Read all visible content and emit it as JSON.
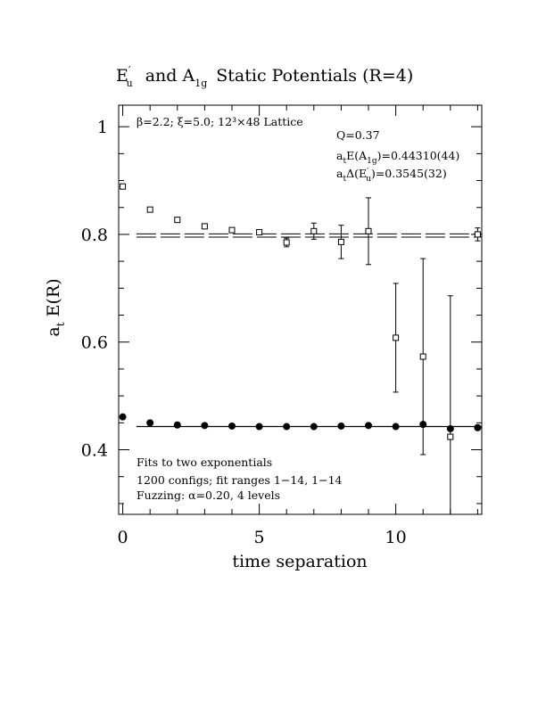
{
  "chart_data": {
    "type": "scatter",
    "title": {
      "e_main": "E",
      "e_prime": "′",
      "e_sub": "u",
      "and": "and A",
      "a_sub": "1g",
      "rest": "Static Potentials (R=4)"
    },
    "xlabel": "time separation",
    "ylabel": {
      "main": "a",
      "sub": "t",
      "rest": " E(R)"
    },
    "xlim": [
      -0.15,
      13.15
    ],
    "ylim": [
      0.28,
      1.04
    ],
    "x_ticks": [
      0,
      5,
      10
    ],
    "x_tick_labels": [
      "0",
      "5",
      "10"
    ],
    "y_ticks": [
      0.4,
      0.6,
      0.8,
      1.0
    ],
    "y_tick_labels": [
      "0.4",
      "0.6",
      "0.8",
      "1"
    ],
    "x_minor_step": 1,
    "y_minor_step": 0.05,
    "annotations": {
      "lattice": "β=2.2; ξ=5.0; 12³×48 Lattice",
      "q": "Q=0.37",
      "a1g_fit": {
        "main": "a",
        "sub1": "t",
        "mid": "E(A",
        "sub2": "1g",
        "rest": ")=0.44310(44)"
      },
      "eu_fit": {
        "main": "a",
        "sub1": "t",
        "mid": "Δ(E",
        "prime": "′",
        "sub2": "u",
        "rest": ")=0.3545(32)"
      },
      "fits": "Fits to two exponentials",
      "configs": "1200 configs; fit ranges 1−14, 1−14",
      "fuzzing": "Fuzzing: α=0.20, 4 levels"
    },
    "series": [
      {
        "marker": "open-square",
        "points": [
          {
            "x": 0,
            "y": 0.889,
            "err": 0.004
          },
          {
            "x": 1,
            "y": 0.846,
            "err": 0.004
          },
          {
            "x": 2,
            "y": 0.827,
            "err": 0.004
          },
          {
            "x": 3,
            "y": 0.815,
            "err": 0.004
          },
          {
            "x": 4,
            "y": 0.808,
            "err": 0.004
          },
          {
            "x": 5,
            "y": 0.804,
            "err": 0.005
          },
          {
            "x": 6,
            "y": 0.785,
            "err": 0.008
          },
          {
            "x": 7,
            "y": 0.806,
            "err": 0.015
          },
          {
            "x": 8,
            "y": 0.786,
            "err": 0.031
          },
          {
            "x": 9,
            "y": 0.806,
            "err": 0.062
          },
          {
            "x": 10,
            "y": 0.608,
            "err": 0.101
          },
          {
            "x": 11,
            "y": 0.573,
            "err": 0.182
          },
          {
            "x": 12,
            "y": 0.424,
            "err": 0.262
          },
          {
            "x": 13,
            "y": 0.8,
            "err": 0.012
          }
        ],
        "fit": {
          "y": 0.798,
          "err": 0.003,
          "x_range": [
            1,
            14
          ]
        }
      },
      {
        "marker": "filled-circle",
        "points": [
          {
            "x": 0,
            "y": 0.461,
            "err": 0.002
          },
          {
            "x": 1,
            "y": 0.45,
            "err": 0.002
          },
          {
            "x": 2,
            "y": 0.446,
            "err": 0.002
          },
          {
            "x": 3,
            "y": 0.445,
            "err": 0.002
          },
          {
            "x": 4,
            "y": 0.444,
            "err": 0.002
          },
          {
            "x": 5,
            "y": 0.443,
            "err": 0.002
          },
          {
            "x": 6,
            "y": 0.443,
            "err": 0.002
          },
          {
            "x": 7,
            "y": 0.443,
            "err": 0.002
          },
          {
            "x": 8,
            "y": 0.444,
            "err": 0.002
          },
          {
            "x": 9,
            "y": 0.445,
            "err": 0.002
          },
          {
            "x": 10,
            "y": 0.443,
            "err": 0.003
          },
          {
            "x": 11,
            "y": 0.447,
            "err": 0.004
          },
          {
            "x": 12,
            "y": 0.439,
            "err": 0.005
          },
          {
            "x": 13,
            "y": 0.441,
            "err": 0.006
          }
        ],
        "fit": {
          "y": 0.4431,
          "err": 0.00044,
          "x_range": [
            1,
            14
          ]
        }
      }
    ]
  }
}
